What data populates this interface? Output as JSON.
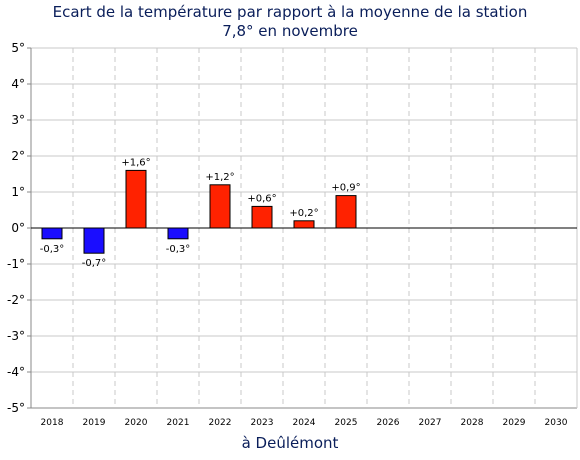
{
  "chart_data": {
    "type": "bar",
    "title": "Ecart de la température par rapport à la moyenne de la station",
    "subtitle": "7,8° en novembre",
    "xlabel": "à Deûlémont",
    "ylabel": "",
    "categories": [
      "2018",
      "2019",
      "2020",
      "2021",
      "2022",
      "2023",
      "2024",
      "2025",
      "2026",
      "2027",
      "2028",
      "2029",
      "2030"
    ],
    "values": [
      -0.3,
      -0.7,
      1.6,
      -0.3,
      1.2,
      0.6,
      0.2,
      0.9,
      null,
      null,
      null,
      null,
      null
    ],
    "data_labels": [
      "-0,3°",
      "-0,7°",
      "+1,6°",
      "-0,3°",
      "+1,2°",
      "+0,6°",
      "+0,2°",
      "+0,9°",
      "",
      "",
      "",
      "",
      ""
    ],
    "yticks": [
      5,
      4,
      3,
      2,
      1,
      0,
      -1,
      -2,
      -3,
      -4,
      -5
    ],
    "ytick_labels": [
      "5°",
      "4°",
      "3°",
      "2°",
      "1°",
      "0°",
      "-1°",
      "-2°",
      "-3°",
      "-4°",
      "-5°"
    ],
    "ylim": [
      -5,
      5
    ],
    "grid": true,
    "colors": {
      "positive": "#ff2200",
      "negative": "#1a0dff",
      "grid": "#c8c8c8",
      "axis": "#000000",
      "title": "#0a1e5a"
    }
  }
}
